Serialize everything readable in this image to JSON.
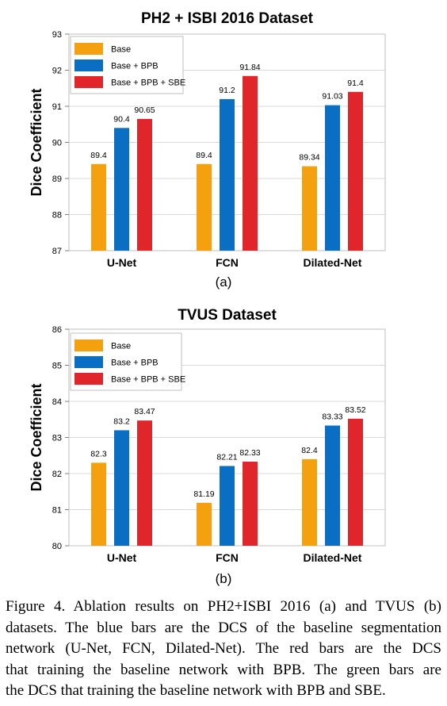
{
  "charts": [
    {
      "id": "a",
      "sublabel": "(a)"
    },
    {
      "id": "b",
      "sublabel": "(b)"
    }
  ],
  "chart_data": [
    {
      "type": "bar",
      "title": "PH2 + ISBI 2016 Dataset",
      "ylabel": "Dice Coefficient",
      "xlabel": "",
      "categories": [
        "U-Net",
        "FCN",
        "Dilated-Net"
      ],
      "ylim": [
        87,
        93
      ],
      "yticks": [
        "87",
        "88",
        "89",
        "90",
        "91",
        "92",
        "93"
      ],
      "grid": true,
      "legend_position": "top-left",
      "series": [
        {
          "name": "Base",
          "color": "#F5A00E",
          "values": [
            89.4,
            89.4,
            89.34
          ],
          "labels": [
            "89.4",
            "89.4",
            "89.34"
          ]
        },
        {
          "name": "Base + BPB",
          "color": "#0A6FC2",
          "values": [
            90.4,
            91.2,
            91.03
          ],
          "labels": [
            "90.4",
            "91.2",
            "91.03"
          ]
        },
        {
          "name": "Base + BPB + SBE",
          "color": "#E0262B",
          "values": [
            90.65,
            91.84,
            91.4
          ],
          "labels": [
            "90.65",
            "91.84",
            "91.4"
          ]
        }
      ]
    },
    {
      "type": "bar",
      "title": "TVUS Dataset",
      "ylabel": "Dice Coefficient",
      "xlabel": "",
      "categories": [
        "U-Net",
        "FCN",
        "Dilated-Net"
      ],
      "ylim": [
        80,
        86
      ],
      "yticks": [
        "80",
        "81",
        "82",
        "83",
        "84",
        "85",
        "86"
      ],
      "grid": true,
      "legend_position": "top-left",
      "series": [
        {
          "name": "Base",
          "color": "#F5A00E",
          "values": [
            82.3,
            81.19,
            82.4
          ],
          "labels": [
            "82.3",
            "81.19",
            "82.4"
          ]
        },
        {
          "name": "Base + BPB",
          "color": "#0A6FC2",
          "values": [
            83.2,
            82.21,
            83.33
          ],
          "labels": [
            "83.2",
            "82.21",
            "83.33"
          ]
        },
        {
          "name": "Base + BPB + SBE",
          "color": "#E0262B",
          "values": [
            83.47,
            82.33,
            83.52
          ],
          "labels": [
            "83.47",
            "82.33",
            "83.52"
          ]
        }
      ]
    }
  ],
  "caption": {
    "lines": [
      "Figure 4. Ablation results on PH2+ISBI 2016 (a) and TVUS (b)",
      "datasets. The blue bars are the DCS of the baseline segmentation",
      "network (U-Net, FCN, Dilated-Net). The red bars are the DCS",
      "that training the baseline network with BPB. The green bars are",
      "the DCS that training the baseline network with BPB and SBE."
    ]
  }
}
